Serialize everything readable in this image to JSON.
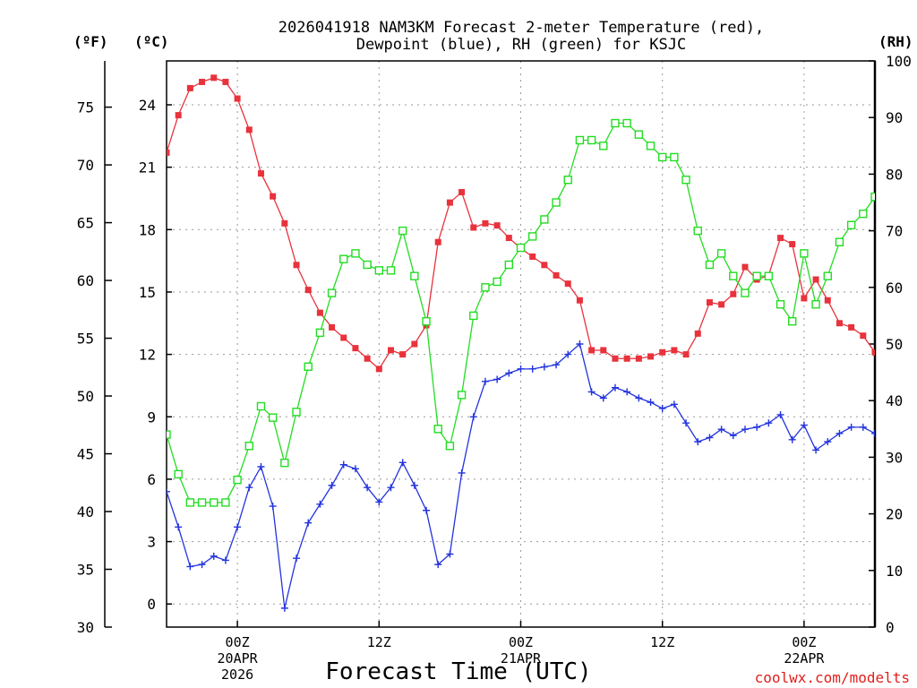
{
  "chart_data": {
    "type": "line",
    "title": "2026041918 NAM3KM Forecast 2-meter Temperature (red),",
    "title_line2": "Dewpoint (blue), RH (green) for KSJC",
    "xlabel": "Forecast Time (UTC)",
    "credit": "coolwx.com/modelts",
    "x_hours": [
      0,
      1,
      2,
      3,
      4,
      5,
      6,
      7,
      8,
      9,
      10,
      11,
      12,
      13,
      14,
      15,
      16,
      17,
      18,
      19,
      20,
      21,
      22,
      23,
      24,
      25,
      26,
      27,
      28,
      29,
      30,
      31,
      32,
      33,
      34,
      35,
      36,
      37,
      38,
      39,
      40,
      41,
      42,
      43,
      44,
      45,
      46,
      47,
      48,
      49,
      50,
      51,
      52,
      53,
      54,
      55,
      56,
      57,
      58,
      59,
      60
    ],
    "xlim_hours": [
      0,
      60
    ],
    "x_ticks": [
      {
        "hour": 6,
        "line1": "00Z",
        "line2": "20APR",
        "line3": "2026"
      },
      {
        "hour": 18,
        "line1": "12Z",
        "line2": "",
        "line3": ""
      },
      {
        "hour": 30,
        "line1": "00Z",
        "line2": "21APR",
        "line3": ""
      },
      {
        "hour": 42,
        "line1": "12Z",
        "line2": "",
        "line3": ""
      },
      {
        "hour": 54,
        "line1": "00Z",
        "line2": "22APR",
        "line3": ""
      }
    ],
    "axes": {
      "fahrenheit": {
        "unit_label": "(ºF)",
        "ticks": [
          30,
          35,
          40,
          45,
          50,
          55,
          60,
          65,
          70,
          75
        ],
        "range": [
          30,
          79
        ]
      },
      "celsius": {
        "unit_label": "(ºC)",
        "ticks": [
          0,
          3,
          6,
          9,
          12,
          15,
          18,
          21,
          24
        ],
        "range": [
          -1.11,
          26.11
        ]
      },
      "rh": {
        "unit_label": "(RH)",
        "ticks": [
          0,
          10,
          20,
          30,
          40,
          50,
          60,
          70,
          80,
          90,
          100
        ],
        "range": [
          0,
          100
        ]
      }
    },
    "series": [
      {
        "name": "Temperature",
        "units": "C",
        "color": "#e8323c",
        "marker": "filled-square",
        "values": [
          21.7,
          23.5,
          24.8,
          25.1,
          25.3,
          25.1,
          24.3,
          22.8,
          20.7,
          19.6,
          18.3,
          16.3,
          15.1,
          14.0,
          13.3,
          12.8,
          12.3,
          11.8,
          11.3,
          12.2,
          12.0,
          12.5,
          13.4,
          17.4,
          19.3,
          19.8,
          18.1,
          18.3,
          18.2,
          17.6,
          17.1,
          16.7,
          16.3,
          15.8,
          15.4,
          14.6,
          12.2,
          12.2,
          11.8,
          11.8,
          11.8,
          11.9,
          12.1,
          12.2,
          12.0,
          13.0,
          14.5,
          14.4,
          14.9,
          16.2,
          15.6,
          15.8,
          17.6,
          17.3,
          14.7,
          15.6,
          14.6,
          13.5,
          13.3,
          12.9,
          12.1
        ]
      },
      {
        "name": "Dewpoint",
        "units": "C",
        "color": "#2233dd",
        "marker": "plus",
        "values": [
          5.4,
          3.7,
          1.8,
          1.9,
          2.3,
          2.1,
          3.7,
          5.6,
          6.6,
          4.7,
          -0.2,
          2.2,
          3.9,
          4.8,
          5.7,
          6.7,
          6.5,
          5.6,
          4.9,
          5.6,
          6.8,
          5.7,
          4.5,
          1.9,
          2.4,
          6.3,
          9.0,
          10.7,
          10.8,
          11.1,
          11.3,
          11.3,
          11.4,
          11.5,
          12.0,
          12.5,
          10.2,
          9.9,
          10.4,
          10.2,
          9.9,
          9.7,
          9.4,
          9.6,
          8.7,
          7.8,
          8.0,
          8.4,
          8.1,
          8.4,
          8.5,
          8.7,
          9.1,
          7.9,
          8.6,
          7.4,
          7.8,
          8.2,
          8.5,
          8.5,
          8.2
        ]
      },
      {
        "name": "RH",
        "units": "%",
        "color": "#22dd22",
        "marker": "open-square",
        "values": [
          34,
          27,
          22,
          22,
          22,
          22,
          26,
          32,
          39,
          37,
          29,
          38,
          46,
          52,
          59,
          65,
          66,
          64,
          63,
          63,
          70,
          62,
          54,
          35,
          32,
          41,
          55,
          60,
          61,
          64,
          67,
          69,
          72,
          75,
          79,
          86,
          86,
          85,
          89,
          89,
          87,
          85,
          83,
          83,
          79,
          70,
          64,
          66,
          62,
          59,
          62,
          62,
          57,
          54,
          66,
          57,
          62,
          68,
          71,
          73,
          76
        ]
      }
    ]
  }
}
